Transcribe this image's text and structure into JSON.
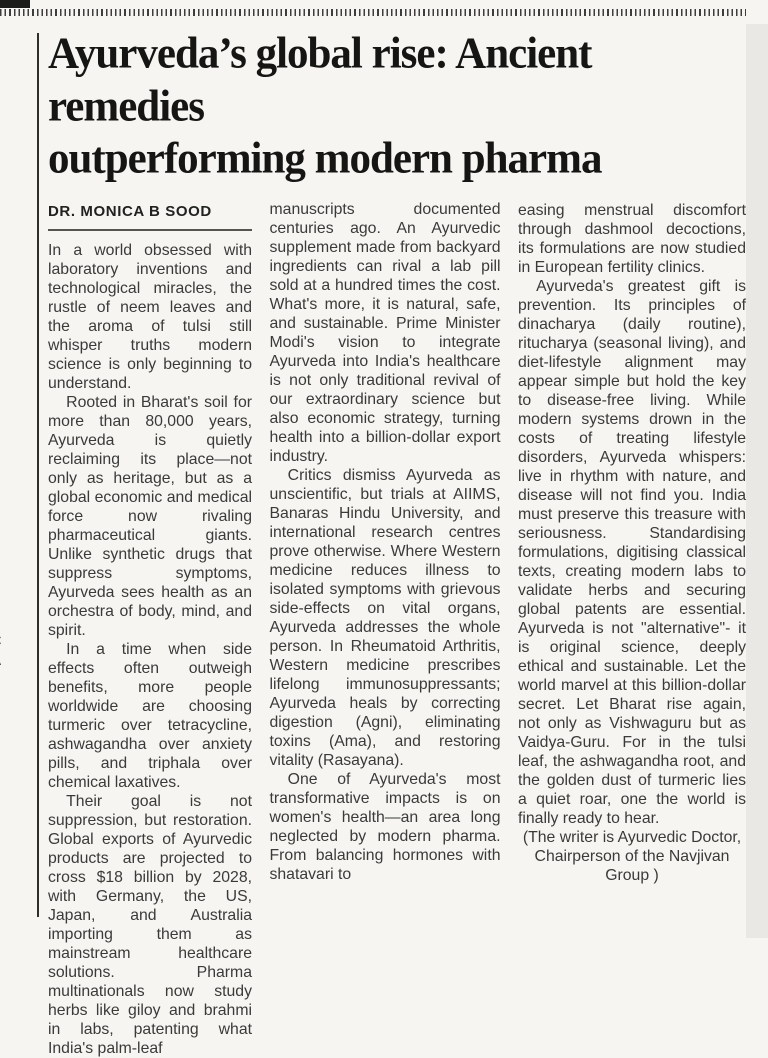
{
  "colors": {
    "page_bg": "#f6f5f2",
    "edge_strip": "#e9e8e4",
    "rule": "#2e2e2d",
    "headline_text": "#151514",
    "body_text": "#3a3a39"
  },
  "article": {
    "headline": {
      "line1": "Ayurveda’s global rise: Ancient remedies",
      "line2": "outperforming modern pharma"
    },
    "byline": "DR. MONICA B SOOD",
    "columns": [
      {
        "paragraphs": [
          {
            "text": "In a world obsessed with laboratory inventions and technological miracles, the rustle of neem leaves and the aroma of tulsi still whisper truths modern science is only beginning to understand."
          },
          {
            "text": "Rooted in Bharat's soil for more than 80,000 years, Ayurveda is quietly reclaiming its place—not only as heritage, but as a global economic and medical force now rivaling pharmaceutical giants. Unlike synthetic drugs that suppress symptoms, Ayurveda sees health as an orchestra of body, mind, and spirit."
          },
          {
            "text": "In a time when side effects often outweigh benefits, more people worldwide are choosing turmeric over tetracycline, ashwagandha over anxiety pills, and triphala over chemical laxatives."
          },
          {
            "text": "Their goal is not suppression, but restoration. Global exports of Ayurvedic products are projected to cross $18 billion by 2028, with Germany, the US, Japan, and Australia importing them as mainstream healthcare solutions. Pharma multinationals now study herbs like giloy and brahmi in labs, patenting what India's palm-leaf"
          }
        ]
      },
      {
        "paragraphs": [
          {
            "text": "manuscripts documented centuries ago. An Ayurvedic supplement made from backyard ingredients can rival a lab pill sold at a hundred times the cost. What's more, it is natural, safe, and sustainable. Prime Minister Modi's vision to integrate Ayurveda into India's healthcare is not only traditional revival of our extraordinary science but also economic strategy, turning health into a billion-dollar export industry."
          },
          {
            "text": "Critics dismiss Ayurveda as unscientific, but trials at AIIMS, Banaras Hindu University, and international research centres prove otherwise. Where Western medicine reduces illness to isolated symptoms with grievous side-effects on vital organs, Ayurveda addresses the whole person. In Rheumatoid Arthritis, Western medicine prescribes lifelong immunosuppressants; Ayurveda heals by correcting digestion (Agni), eliminating toxins (Ama), and restoring vitality (Rasayana)."
          },
          {
            "text": "One of Ayurveda's most transformative impacts is on women's health—an area long neglected by modern pharma. From balancing hormones with shatavari to"
          }
        ]
      },
      {
        "paragraphs": [
          {
            "text": "easing menstrual discomfort through dashmool decoctions, its formulations are now studied in European fertility clinics."
          },
          {
            "text": "Ayurveda's greatest gift is prevention. Its principles of dinacharya (daily routine), ritucharya (seasonal living), and diet-lifestyle alignment may appear simple but hold the key to disease-free living. While modern systems drown in the costs of treating lifestyle disorders, Ayurveda whispers: live in rhythm with nature, and disease will not find you. India must preserve this treasure with seriousness. Standardising formulations, digitising classical texts, creating modern labs to validate herbs and securing global patents are essential. Ayurveda is not \"alternative\"- it is original science, deeply ethical and sustainable. Let the world marvel at this billion-dollar secret. Let Bharat rise again, not only as Vishwaguru but as Vaidya-Guru. For in the tulsi leaf, the ashwagandha root, and the golden dust of turmeric lies a quiet roar, one the world is finally ready to hear."
          }
        ]
      }
    ],
    "credit": "(The writer is Ayurvedic Doctor, Chairperson of the Navjivan Group )"
  },
  "left_edge_fragments": "-\no\nd\na\ns\nl\no\n\ns\ne\nu\nS\nC\nA\nn\nt\nn\na\nf\n-\nl\nd"
}
